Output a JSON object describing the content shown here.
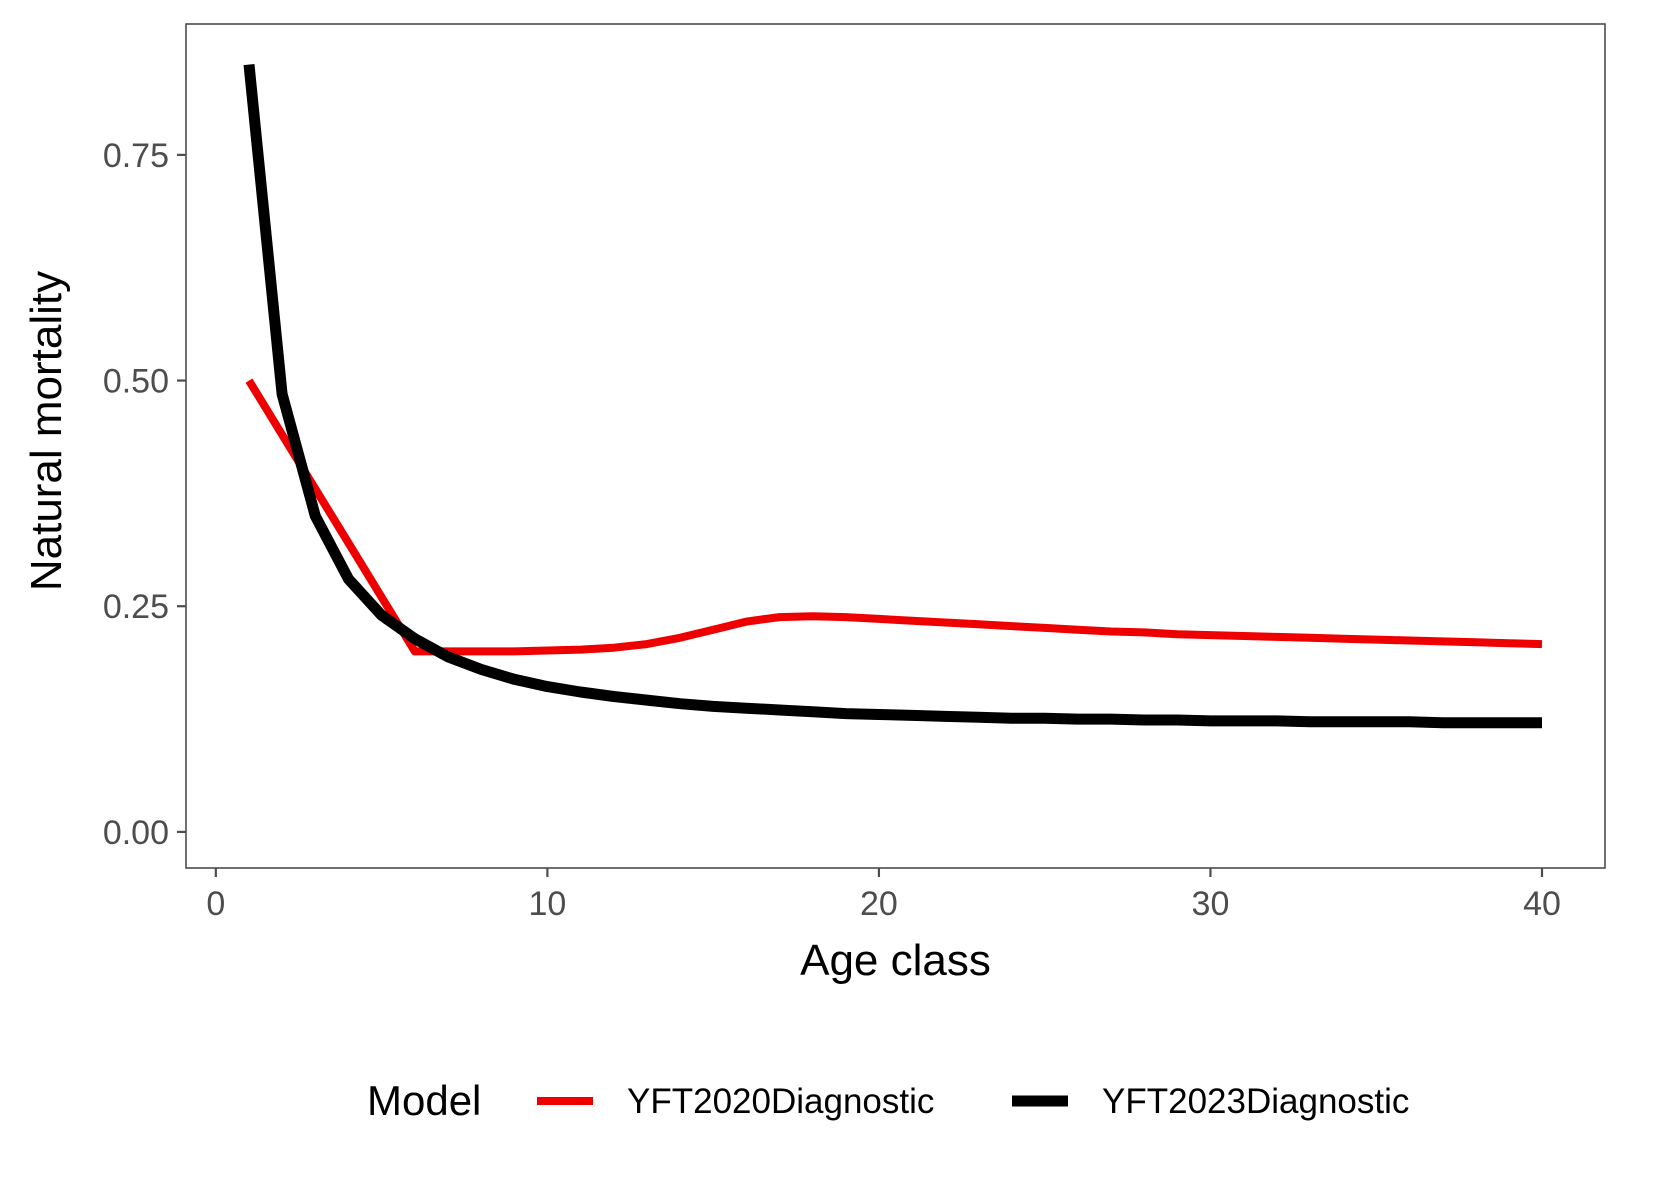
{
  "chart_data": {
    "type": "line",
    "xlabel": "Age class",
    "ylabel": "Natural mortality",
    "xlim": [
      -0.9,
      41.9
    ],
    "ylim": [
      -0.04,
      0.895
    ],
    "x_ticks": [
      {
        "value": 0,
        "label": "0"
      },
      {
        "value": 10,
        "label": "10"
      },
      {
        "value": 20,
        "label": "20"
      },
      {
        "value": 30,
        "label": "30"
      },
      {
        "value": 40,
        "label": "40"
      }
    ],
    "y_ticks": [
      {
        "value": 0.0,
        "label": "0.00"
      },
      {
        "value": 0.25,
        "label": "0.25"
      },
      {
        "value": 0.5,
        "label": "0.50"
      },
      {
        "value": 0.75,
        "label": "0.75"
      }
    ],
    "grid": false,
    "legend": {
      "title": "Model",
      "position": "bottom"
    },
    "series": [
      {
        "name": "YFT2020Diagnostic",
        "color": "#ee0000",
        "x": [
          1,
          2,
          3,
          4,
          5,
          6,
          7,
          8,
          9,
          10,
          11,
          12,
          13,
          14,
          15,
          16,
          17,
          18,
          19,
          20,
          21,
          22,
          23,
          24,
          25,
          26,
          27,
          28,
          29,
          30,
          31,
          32,
          33,
          34,
          35,
          36,
          37,
          38,
          39,
          40
        ],
        "y": [
          0.5,
          0.44,
          0.38,
          0.32,
          0.26,
          0.2,
          0.2,
          0.2,
          0.2,
          0.201,
          0.202,
          0.204,
          0.208,
          0.215,
          0.224,
          0.233,
          0.238,
          0.239,
          0.238,
          0.236,
          0.234,
          0.232,
          0.23,
          0.228,
          0.226,
          0.224,
          0.222,
          0.221,
          0.219,
          0.218,
          0.217,
          0.216,
          0.215,
          0.214,
          0.213,
          0.212,
          0.211,
          0.21,
          0.209,
          0.208
        ]
      },
      {
        "name": "YFT2023Diagnostic",
        "color": "#000000",
        "x": [
          1,
          2,
          3,
          4,
          5,
          6,
          7,
          8,
          9,
          10,
          11,
          12,
          13,
          14,
          15,
          16,
          17,
          18,
          19,
          20,
          21,
          22,
          23,
          24,
          25,
          26,
          27,
          28,
          29,
          30,
          31,
          32,
          33,
          34,
          35,
          36,
          37,
          38,
          39,
          40
        ],
        "y": [
          0.85,
          0.485,
          0.35,
          0.28,
          0.24,
          0.214,
          0.194,
          0.18,
          0.169,
          0.161,
          0.155,
          0.15,
          0.146,
          0.142,
          0.139,
          0.137,
          0.135,
          0.133,
          0.131,
          0.13,
          0.129,
          0.128,
          0.127,
          0.126,
          0.126,
          0.125,
          0.125,
          0.124,
          0.124,
          0.123,
          0.123,
          0.123,
          0.122,
          0.122,
          0.122,
          0.122,
          0.121,
          0.121,
          0.121,
          0.121
        ]
      }
    ]
  }
}
